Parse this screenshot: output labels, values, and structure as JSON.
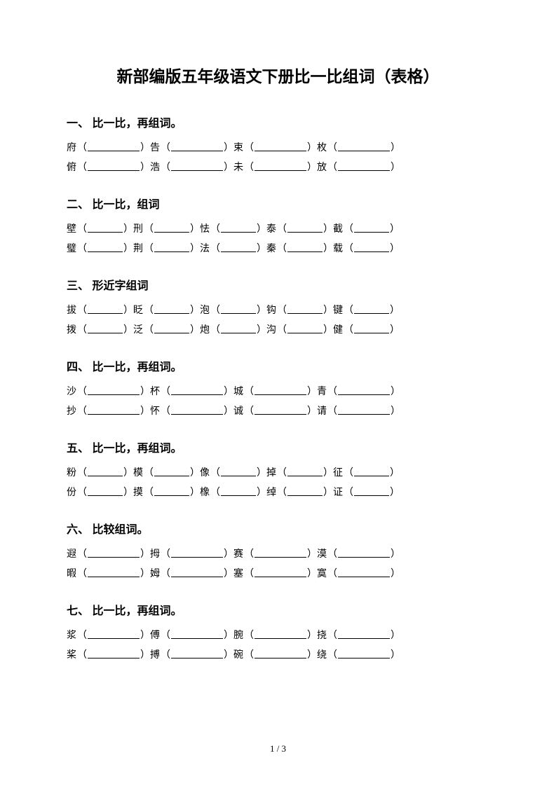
{
  "title": "新部编版五年级语文下册比一比组词（表格）",
  "sections": [
    {
      "header": "一、 比一比，再组词。",
      "blank_width": 74,
      "rows": [
        [
          "府",
          "告",
          "束",
          "枚"
        ],
        [
          "俯",
          "浩",
          "未",
          "放"
        ]
      ]
    },
    {
      "header": "二、 比一比，组词",
      "blank_width": 50,
      "rows": [
        [
          "壁",
          "刑",
          "怯",
          "泰",
          "截"
        ],
        [
          "璧",
          "荆",
          "法",
          "秦",
          "载"
        ]
      ]
    },
    {
      "header": "三、 形近字组词",
      "blank_width": 50,
      "rows": [
        [
          "拔",
          "眨",
          "泡",
          "钩",
          "键"
        ],
        [
          "拨",
          "泛",
          "炮",
          "沟",
          "健"
        ]
      ]
    },
    {
      "header": "四、 比一比，再组词。",
      "blank_width": 74,
      "rows": [
        [
          "沙",
          "杯",
          "城",
          "青"
        ],
        [
          "抄",
          "怀",
          "诚",
          "请"
        ]
      ]
    },
    {
      "header": "五、 比一比，再组词。",
      "blank_width": 50,
      "rows": [
        [
          "粉",
          "模",
          "像",
          "掉",
          "征"
        ],
        [
          "份",
          "摸",
          "橡",
          "绰",
          "证"
        ]
      ]
    },
    {
      "header": "六、 比较组词。",
      "blank_width": 74,
      "rows": [
        [
          "遐",
          "拇",
          "赛",
          "漠"
        ],
        [
          "暇",
          "姆",
          "塞",
          "寞"
        ]
      ]
    },
    {
      "header": "七、 比一比，再组词。",
      "blank_width": 74,
      "rows": [
        [
          "浆",
          "傅",
          "腕",
          "挠"
        ],
        [
          "桨",
          "搏",
          "碗",
          "绕"
        ]
      ]
    }
  ],
  "footer": "1 / 3",
  "colors": {
    "text": "#000000",
    "background": "#ffffff"
  }
}
